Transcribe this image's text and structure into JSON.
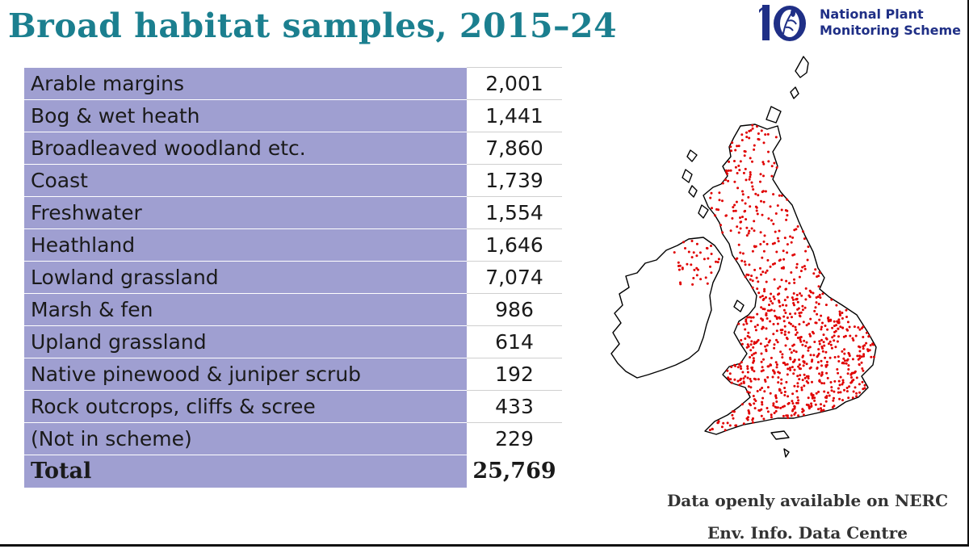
{
  "header": {
    "title": "Broad habitat samples, 2015–24"
  },
  "logo": {
    "line1": "National Plant",
    "line2": "Monitoring Scheme",
    "mark": "10",
    "brand_color": "#1f2f86"
  },
  "table": {
    "rows": [
      {
        "habitat": "Arable margins",
        "samples": "2,001"
      },
      {
        "habitat": "Bog & wet heath",
        "samples": "1,441"
      },
      {
        "habitat": "Broadleaved woodland etc.",
        "samples": "7,860"
      },
      {
        "habitat": "Coast",
        "samples": "1,739"
      },
      {
        "habitat": "Freshwater",
        "samples": "1,554"
      },
      {
        "habitat": "Heathland",
        "samples": "1,646"
      },
      {
        "habitat": "Lowland grassland",
        "samples": "7,074"
      },
      {
        "habitat": "Marsh & fen",
        "samples": "986"
      },
      {
        "habitat": "Upland grassland",
        "samples": "614"
      },
      {
        "habitat": "Native pinewood & juniper scrub",
        "samples": "192"
      },
      {
        "habitat": "Rock outcrops, cliffs & scree",
        "samples": "433"
      },
      {
        "habitat": "(Not in scheme)",
        "samples": "229"
      }
    ],
    "total": {
      "label": "Total",
      "value": "25,769"
    },
    "row_color": "#9f9fd1"
  },
  "footer": {
    "line1": "Data openly available on NERC",
    "line2": "Env. Info. Data Centre"
  },
  "colors": {
    "title": "#1b7f8f",
    "sample_dot": "#e00000"
  }
}
